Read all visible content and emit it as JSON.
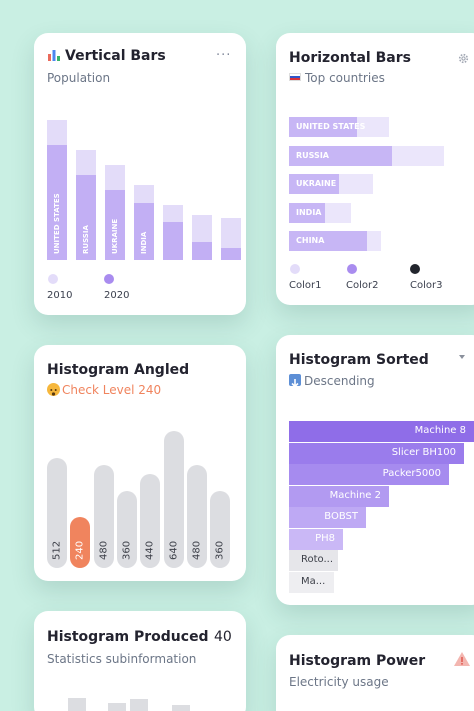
{
  "vertical_bars": {
    "title": "Vertical Bars",
    "title_icon": "bar-chart-icon",
    "subtitle": "Population",
    "menu": "···",
    "legend": [
      {
        "label": "2010",
        "color": "#e3dcf9"
      },
      {
        "label": "2020",
        "color": "#a98cef"
      }
    ],
    "chart_data": {
      "type": "bar",
      "categories": [
        "UNITED STATES",
        "RUSSIA",
        "UKRAINE",
        "INDIA",
        "",
        "",
        ""
      ],
      "series": [
        {
          "name": "2010",
          "values": [
            140,
            110,
            95,
            75,
            55,
            45,
            42
          ]
        },
        {
          "name": "2020",
          "values": [
            115,
            85,
            70,
            57,
            38,
            18,
            12
          ]
        }
      ]
    }
  },
  "horizontal_bars": {
    "title": "Horizontal Bars",
    "subtitle": "Top countries",
    "flag_icon": "russia-flag-icon",
    "settings_icon": "gear-icon",
    "legend": [
      {
        "label": "Color1",
        "color": "#e3dcf9"
      },
      {
        "label": "Color2",
        "color": "#a98cef"
      },
      {
        "label": "Color3",
        "color": "#22252d"
      }
    ],
    "chart_data": {
      "type": "bar",
      "categories": [
        "UNITED STATES",
        "RUSSIA",
        "UKRAINE",
        "INDIA",
        "CHINA"
      ],
      "series": [
        {
          "name": "Color1",
          "values": [
            100,
            155,
            84,
            62,
            92
          ]
        },
        {
          "name": "Color2",
          "values": [
            68,
            103,
            50,
            36,
            78
          ]
        }
      ]
    }
  },
  "histogram_angled": {
    "title": "Histogram Angled",
    "status_icon": "warning-face-icon",
    "status_text": "Check Level 240",
    "status_color": "#f0845e",
    "chart_data": {
      "type": "bar",
      "categories": [
        "512",
        "240",
        "480",
        "360",
        "440",
        "640",
        "480",
        "360"
      ],
      "values": [
        512,
        240,
        480,
        360,
        440,
        640,
        480,
        360
      ],
      "highlight_index": 1
    }
  },
  "histogram_sorted": {
    "title": "Histogram Sorted",
    "dropdown_icon": "caret-down-icon",
    "subtitle": "Descending",
    "subtitle_icon": "sort-down-icon",
    "chart_data": {
      "type": "bar",
      "categories": [
        "Machine 8",
        "Slicer BH100",
        "Packer5000",
        "Machine 2",
        "BOBST",
        "PH8",
        "Roto...",
        "Ma..."
      ],
      "values": [
        185,
        175,
        160,
        100,
        77,
        54,
        49,
        45
      ]
    }
  },
  "histogram_produced": {
    "title": "Histogram Produced",
    "value": "40",
    "subtitle": "Statistics subinformation"
  },
  "histogram_power": {
    "title": "Histogram Power",
    "subtitle": "Electricity usage",
    "alert_icon": "warning-triangle-icon"
  }
}
